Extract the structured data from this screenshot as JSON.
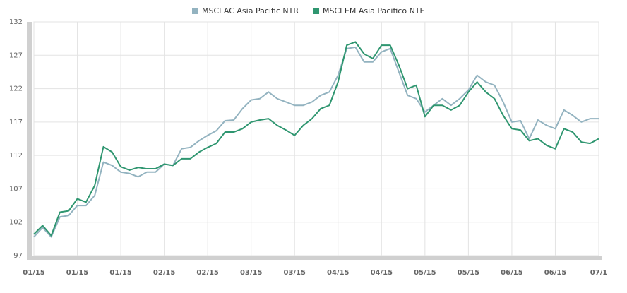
{
  "chart_data": {
    "type": "line",
    "categories": [
      "01/15",
      null,
      null,
      null,
      null,
      "01/15",
      null,
      null,
      null,
      null,
      "01/15",
      null,
      null,
      null,
      null,
      "02/15",
      null,
      null,
      null,
      null,
      "02/15",
      null,
      null,
      null,
      null,
      "03/15",
      null,
      null,
      null,
      null,
      "03/15",
      null,
      null,
      null,
      null,
      "04/15",
      null,
      null,
      null,
      null,
      "04/15",
      null,
      null,
      null,
      null,
      "05/15",
      null,
      null,
      null,
      null,
      "05/15",
      null,
      null,
      null,
      null,
      "06/15",
      null,
      null,
      null,
      null,
      "06/15",
      null,
      null,
      null,
      null,
      "07/1"
    ],
    "series": [
      {
        "name": "MSCI AC Asia Pacific NTR",
        "color": "#93b3c0",
        "values": [
          99.8,
          101.2,
          99.8,
          102.8,
          103.0,
          104.5,
          104.5,
          106,
          111,
          110.5,
          109.5,
          109.3,
          108.8,
          109.5,
          109.5,
          110.7,
          110.5,
          113,
          113.2,
          114.2,
          115,
          115.7,
          117.2,
          117.3,
          119,
          120.3,
          120.5,
          121.5,
          120.5,
          120,
          119.5,
          119.5,
          120,
          121,
          121.5,
          124,
          128,
          128.2,
          126,
          126,
          127.5,
          128,
          124.5,
          121,
          120.5,
          118.5,
          119.5,
          120.5,
          119.5,
          120.5,
          121.8,
          124,
          123,
          122.5,
          120,
          117,
          117.2,
          114.5,
          117.3,
          116.5,
          116,
          118.8,
          118,
          117,
          117.5,
          117.5
        ]
      },
      {
        "name": "MSCI EM Asia Pacifico NTF",
        "color": "#2f9670",
        "values": [
          100.2,
          101.5,
          100.0,
          103.5,
          103.7,
          105.5,
          105.0,
          107.5,
          113.3,
          112.5,
          110.3,
          109.8,
          110.2,
          110,
          110,
          110.7,
          110.5,
          111.5,
          111.5,
          112.5,
          113.2,
          113.8,
          115.5,
          115.5,
          116,
          117,
          117.3,
          117.5,
          116.5,
          115.8,
          115,
          116.5,
          117.5,
          119,
          119.5,
          123,
          128.5,
          129,
          127.2,
          126.5,
          128.5,
          128.5,
          125.5,
          122,
          122.5,
          117.8,
          119.5,
          119.5,
          118.8,
          119.5,
          121.5,
          123,
          121.5,
          120.5,
          118,
          116,
          115.8,
          114.2,
          114.5,
          113.5,
          113,
          116,
          115.5,
          114,
          113.8,
          114.5
        ]
      }
    ],
    "ylim": [
      97,
      132
    ],
    "yticks": [
      97,
      102,
      107,
      112,
      117,
      122,
      127,
      132
    ],
    "grid": true,
    "legend": "top"
  }
}
